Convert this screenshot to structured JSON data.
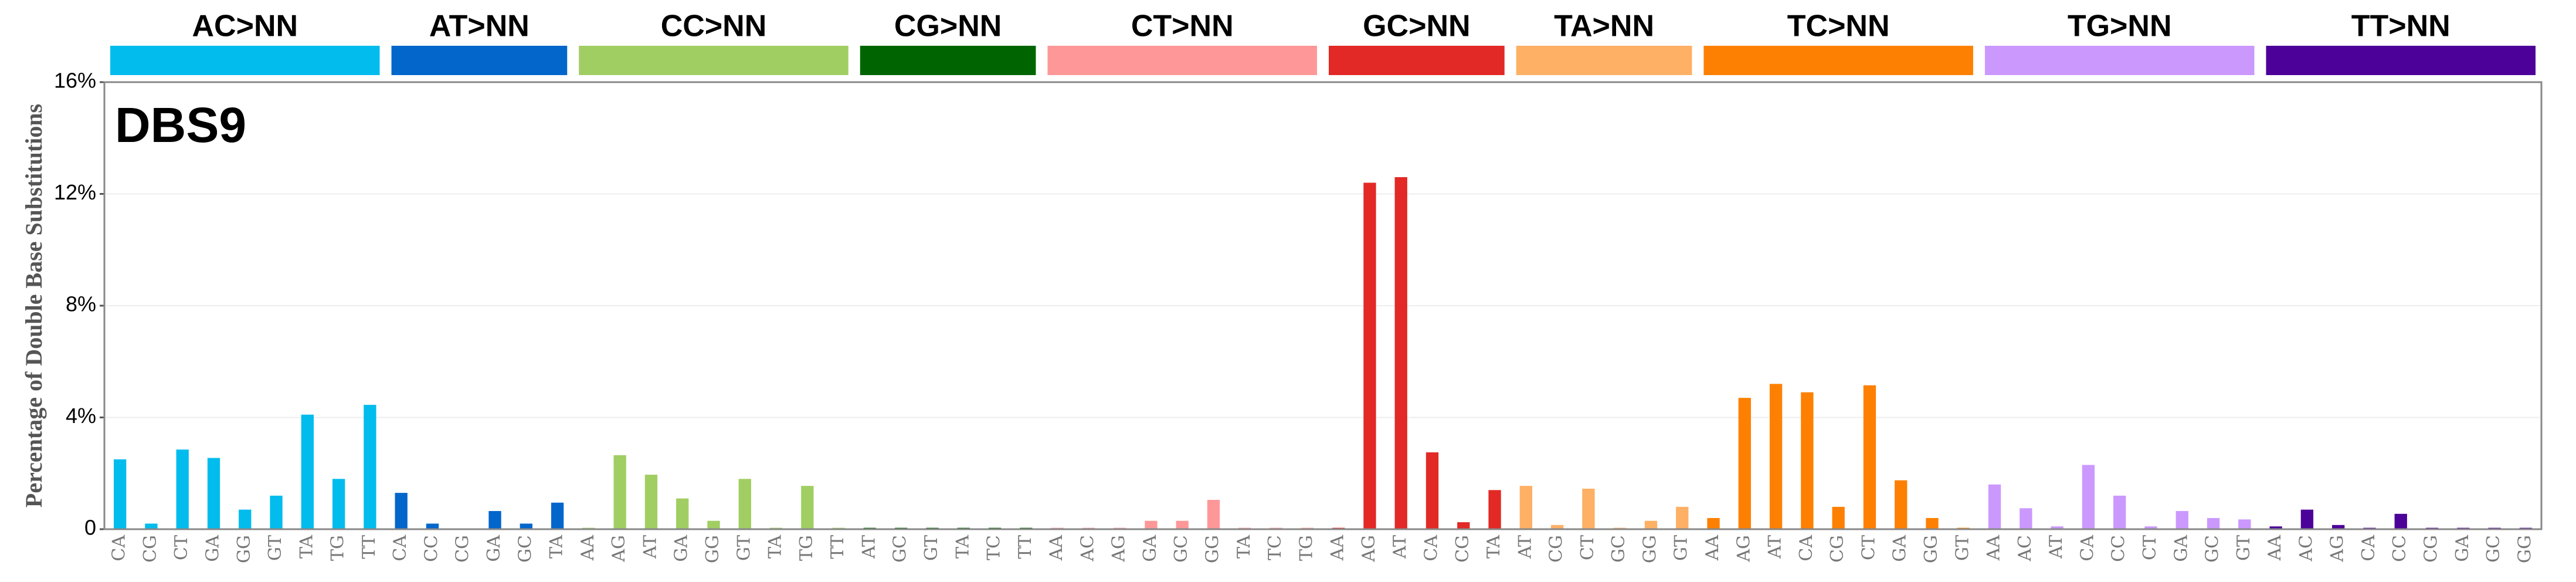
{
  "chart_data": {
    "type": "bar",
    "title": "DBS9",
    "y_label": "Percentage of Double Base Substitutions",
    "ylim": [
      0,
      16
    ],
    "yticks": [
      {
        "value": 0,
        "label": "0"
      },
      {
        "value": 4,
        "label": "4%"
      },
      {
        "value": 8,
        "label": "8%"
      },
      {
        "value": 12,
        "label": "12%"
      },
      {
        "value": 16,
        "label": "16%"
      }
    ],
    "grid": true,
    "groups": [
      {
        "name": "AC>NN",
        "color": "#03bcee",
        "categories": [
          "CA",
          "CG",
          "CT",
          "GA",
          "GG",
          "GT",
          "TA",
          "TG",
          "TT"
        ],
        "values": [
          2.5,
          0.2,
          2.85,
          2.55,
          0.7,
          1.2,
          4.1,
          1.8,
          4.45
        ]
      },
      {
        "name": "AT>NN",
        "color": "#0266cb",
        "categories": [
          "CA",
          "CC",
          "CG",
          "GA",
          "GC",
          "TA"
        ],
        "values": [
          1.3,
          0.2,
          0.0,
          0.65,
          0.2,
          0.95
        ]
      },
      {
        "name": "CC>NN",
        "color": "#a1ce63",
        "categories": [
          "AA",
          "AG",
          "AT",
          "GA",
          "GG",
          "GT",
          "TA",
          "TG",
          "TT"
        ],
        "values": [
          0.05,
          2.65,
          1.95,
          1.1,
          0.3,
          1.8,
          0.05,
          1.55,
          0.05
        ]
      },
      {
        "name": "CG>NN",
        "color": "#006501",
        "categories": [
          "AT",
          "GC",
          "GT",
          "TA",
          "TC",
          "TT"
        ],
        "values": [
          0.05,
          0.05,
          0.05,
          0.05,
          0.05,
          0.05
        ]
      },
      {
        "name": "CT>NN",
        "color": "#fe9898",
        "categories": [
          "AA",
          "AC",
          "AG",
          "GA",
          "GC",
          "GG",
          "TA",
          "TC",
          "TG"
        ],
        "values": [
          0.05,
          0.05,
          0.05,
          0.3,
          0.3,
          1.05,
          0.05,
          0.05,
          0.05
        ]
      },
      {
        "name": "GC>NN",
        "color": "#e22925",
        "categories": [
          "AA",
          "AG",
          "AT",
          "CA",
          "CG",
          "TA"
        ],
        "values": [
          0.05,
          12.4,
          12.6,
          2.75,
          0.25,
          1.4
        ]
      },
      {
        "name": "TA>NN",
        "color": "#feb065",
        "categories": [
          "AT",
          "CG",
          "CT",
          "GC",
          "GG",
          "GT"
        ],
        "values": [
          1.55,
          0.15,
          1.45,
          0.05,
          0.3,
          0.8
        ]
      },
      {
        "name": "TC>NN",
        "color": "#fe8002",
        "categories": [
          "AA",
          "AG",
          "AT",
          "CA",
          "CG",
          "CT",
          "GA",
          "GG",
          "GT"
        ],
        "values": [
          0.4,
          4.7,
          5.2,
          4.9,
          0.8,
          5.15,
          1.75,
          0.4,
          0.05
        ]
      },
      {
        "name": "TG>NN",
        "color": "#cb98fd",
        "categories": [
          "AA",
          "AC",
          "AT",
          "CA",
          "CC",
          "CT",
          "GA",
          "GC",
          "GT"
        ],
        "values": [
          1.6,
          0.75,
          0.1,
          2.3,
          1.2,
          0.1,
          0.65,
          0.4,
          0.35
        ]
      },
      {
        "name": "TT>NN",
        "color": "#4c0199",
        "categories": [
          "AA",
          "AC",
          "AG",
          "CA",
          "CC",
          "CG",
          "GA",
          "GC",
          "GG"
        ],
        "values": [
          0.1,
          0.7,
          0.15,
          0.05,
          0.55,
          0.05,
          0.05,
          0.05,
          0.05
        ]
      }
    ]
  }
}
